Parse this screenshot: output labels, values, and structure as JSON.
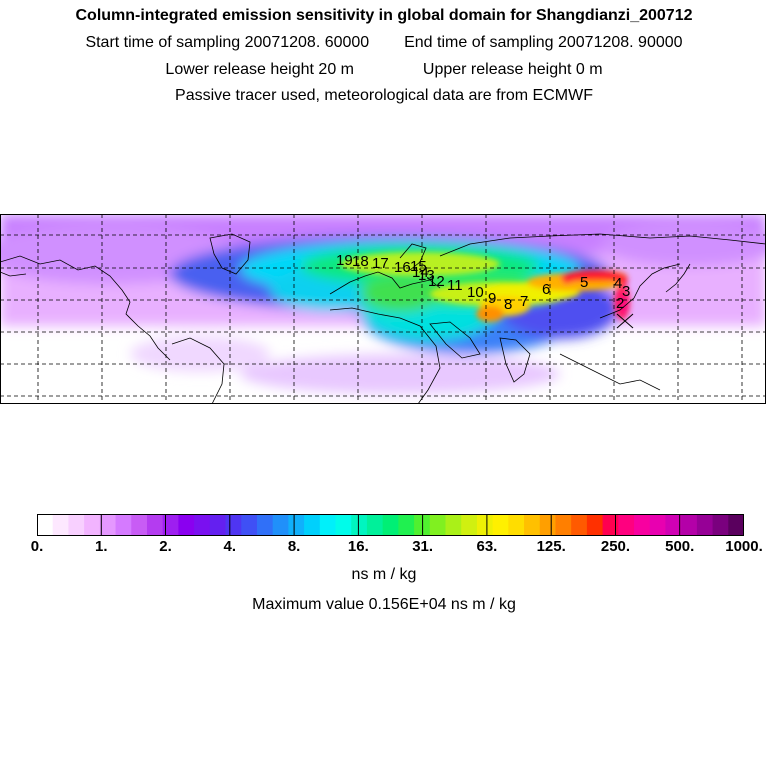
{
  "title": "Column-integrated emission sensitivity in global domain for Shangdianzi_200712",
  "sampling": {
    "start_label": "Start time of sampling",
    "start_value": "20071208. 60000",
    "end_label": "End time of sampling",
    "end_value": "20071208. 90000"
  },
  "release": {
    "lower_label": "Lower release height",
    "lower_value": "20 m",
    "upper_label": "Upper release height",
    "upper_value": "0 m"
  },
  "tracer_note": "Passive tracer used, meteorological data are from ECMWF",
  "map": {
    "trajectory_labels": [
      "2",
      "3",
      "4",
      "5",
      "6",
      "7",
      "8",
      "9",
      "10",
      "11",
      "12",
      "13",
      "14",
      "15",
      "16",
      "17",
      "18",
      "19"
    ],
    "colors": {
      "frame": "#000000",
      "graticule": "#000000",
      "coastline": "#000000"
    }
  },
  "colorbar": {
    "tick_labels": [
      "0.",
      "1.",
      "2.",
      "4.",
      "8.",
      "16.",
      "31.",
      "63.",
      "125.",
      "250.",
      "500.",
      "1000."
    ],
    "colors": [
      "#ffffff",
      "#fde8ff",
      "#f8d0ff",
      "#f2b4ff",
      "#e598ff",
      "#d57aff",
      "#c85cf5",
      "#b43cf0",
      "#9e1ff0",
      "#8a00f0",
      "#7a10f0",
      "#6420f0",
      "#4f35f2",
      "#3f50f5",
      "#3070f8",
      "#2090fa",
      "#10b0fb",
      "#00d0fc",
      "#00f0fa",
      "#00fcea",
      "#00f5c0",
      "#00f09a",
      "#00ef75",
      "#20f050",
      "#50f030",
      "#80f020",
      "#aaf018",
      "#d0f010",
      "#eef005",
      "#fff000",
      "#ffdd00",
      "#ffc000",
      "#ff9f00",
      "#ff7f00",
      "#ff5a00",
      "#ff3000",
      "#ff0050",
      "#ff007f",
      "#f800a0",
      "#e800b0",
      "#d000b4",
      "#b400a8",
      "#960096",
      "#7a007e",
      "#5a005e"
    ],
    "unit": "ns m / kg"
  },
  "maximum_text": "Maximum value  0.156E+04 ns m / kg"
}
